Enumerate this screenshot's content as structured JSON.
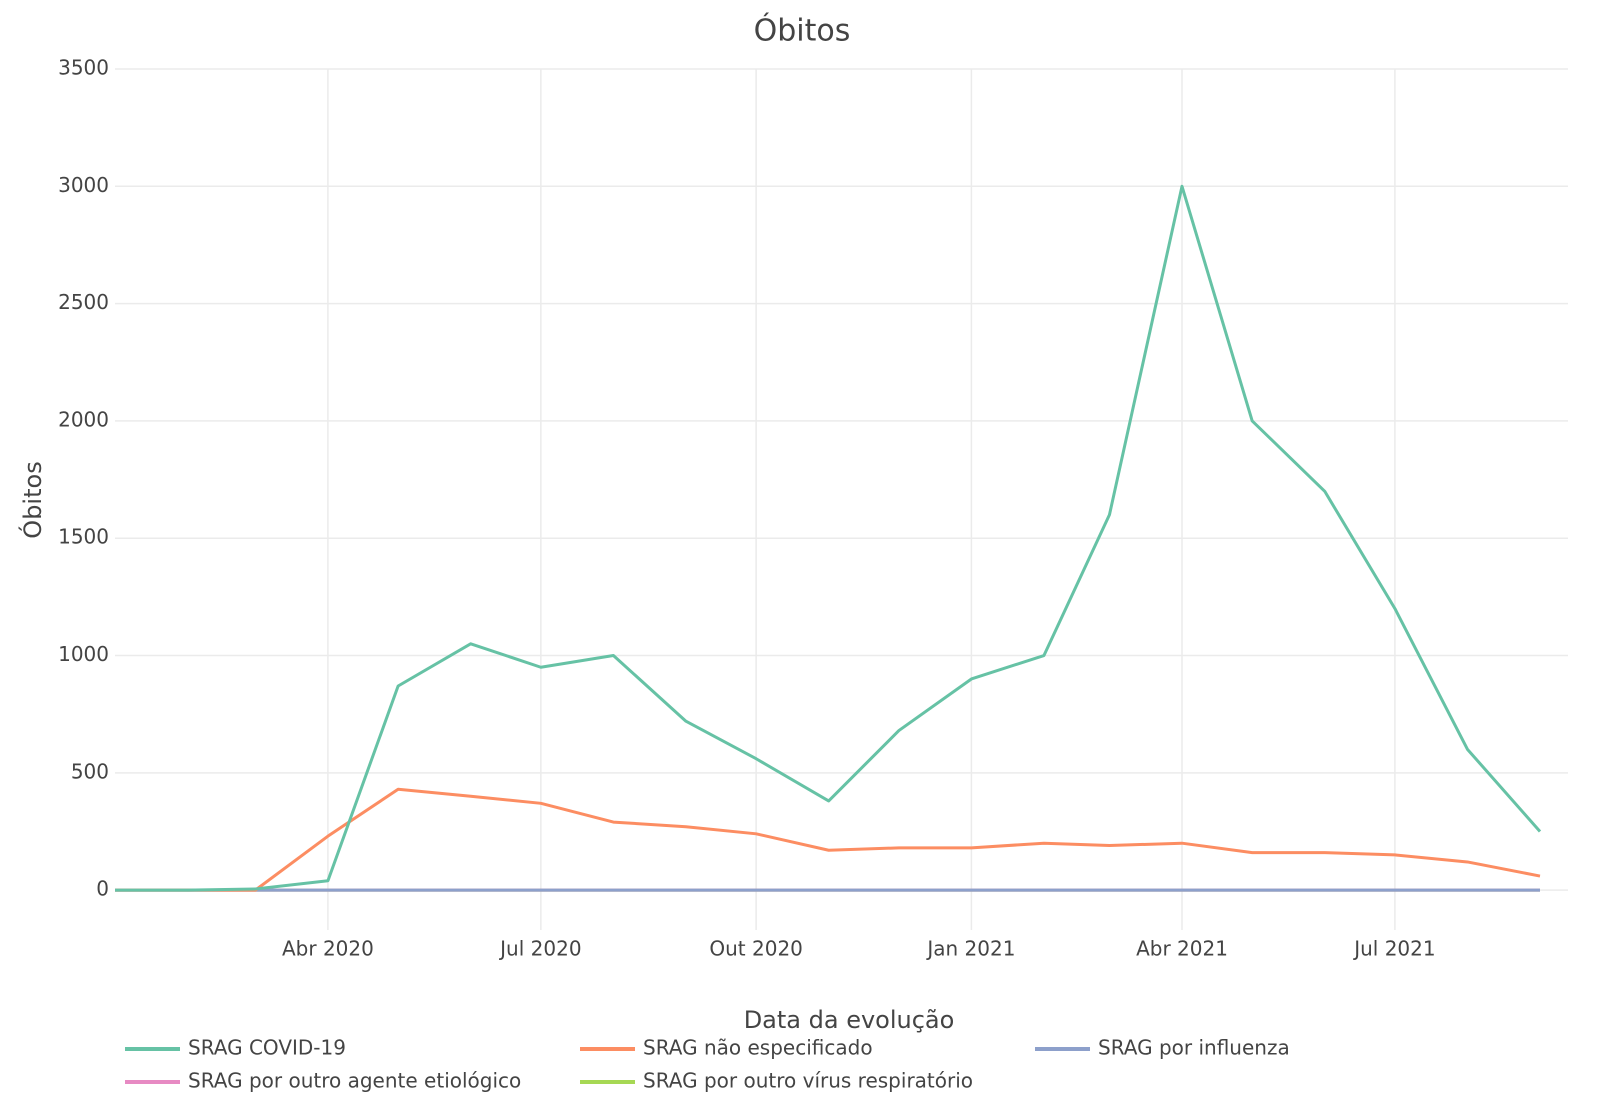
{
  "chart_data": {
    "type": "line",
    "title": "Óbitos",
    "x_label": "Data da evolução",
    "y_label": "Óbitos",
    "x": [
      "2020-01",
      "2020-02",
      "2020-03",
      "2020-04",
      "2020-05",
      "2020-06",
      "2020-07",
      "2020-08",
      "2020-09",
      "2020-10",
      "2020-11",
      "2020-12",
      "2021-01",
      "2021-02",
      "2021-03",
      "2021-04",
      "2021-05",
      "2021-06",
      "2021-07",
      "2021-08",
      "2021-09"
    ],
    "series": [
      {
        "name": "SRAG COVID-19",
        "color": "#66c2a5",
        "values": [
          0,
          0,
          5,
          40,
          870,
          1050,
          950,
          1000,
          720,
          560,
          380,
          680,
          900,
          1000,
          1600,
          3000,
          2000,
          1700,
          1200,
          600,
          250
        ]
      },
      {
        "name": "SRAG não especificado",
        "color": "#fc8d62",
        "values": [
          0,
          0,
          0,
          230,
          430,
          400,
          370,
          290,
          270,
          240,
          170,
          180,
          180,
          200,
          190,
          200,
          160,
          160,
          150,
          120,
          60
        ]
      },
      {
        "name": "SRAG por influenza",
        "color": "#8da0cb",
        "values": [
          0,
          0,
          0,
          0,
          0,
          0,
          0,
          0,
          0,
          0,
          0,
          0,
          0,
          0,
          0,
          0,
          0,
          0,
          0,
          0,
          0
        ]
      },
      {
        "name": "SRAG por outro agente etiológico",
        "color": "#e78ac3",
        "values": [
          0,
          0,
          0,
          0,
          0,
          0,
          0,
          0,
          0,
          0,
          0,
          0,
          0,
          0,
          0,
          0,
          0,
          0,
          0,
          0,
          0
        ]
      },
      {
        "name": "SRAG por outro vírus respiratório",
        "color": "#a6d854",
        "values": [
          0,
          0,
          0,
          0,
          0,
          0,
          0,
          0,
          0,
          0,
          0,
          0,
          0,
          0,
          0,
          0,
          0,
          0,
          0,
          0,
          0
        ]
      }
    ],
    "xlim": [
      "2020-01",
      "2021-09"
    ],
    "xticks": [
      {
        "value": "2020-04",
        "label": "Abr 2020"
      },
      {
        "value": "2020-07",
        "label": "Jul 2020"
      },
      {
        "value": "2020-10",
        "label": "Out 2020"
      },
      {
        "value": "2021-01",
        "label": "Jan 2021"
      },
      {
        "value": "2021-04",
        "label": "Abr 2021"
      },
      {
        "value": "2021-07",
        "label": "Jul 2021"
      }
    ],
    "ylim": [
      -170,
      3500
    ],
    "yticks": [
      0,
      500,
      1000,
      1500,
      2000,
      2500,
      3000,
      3500
    ],
    "grid": true,
    "legend": "bottom"
  }
}
